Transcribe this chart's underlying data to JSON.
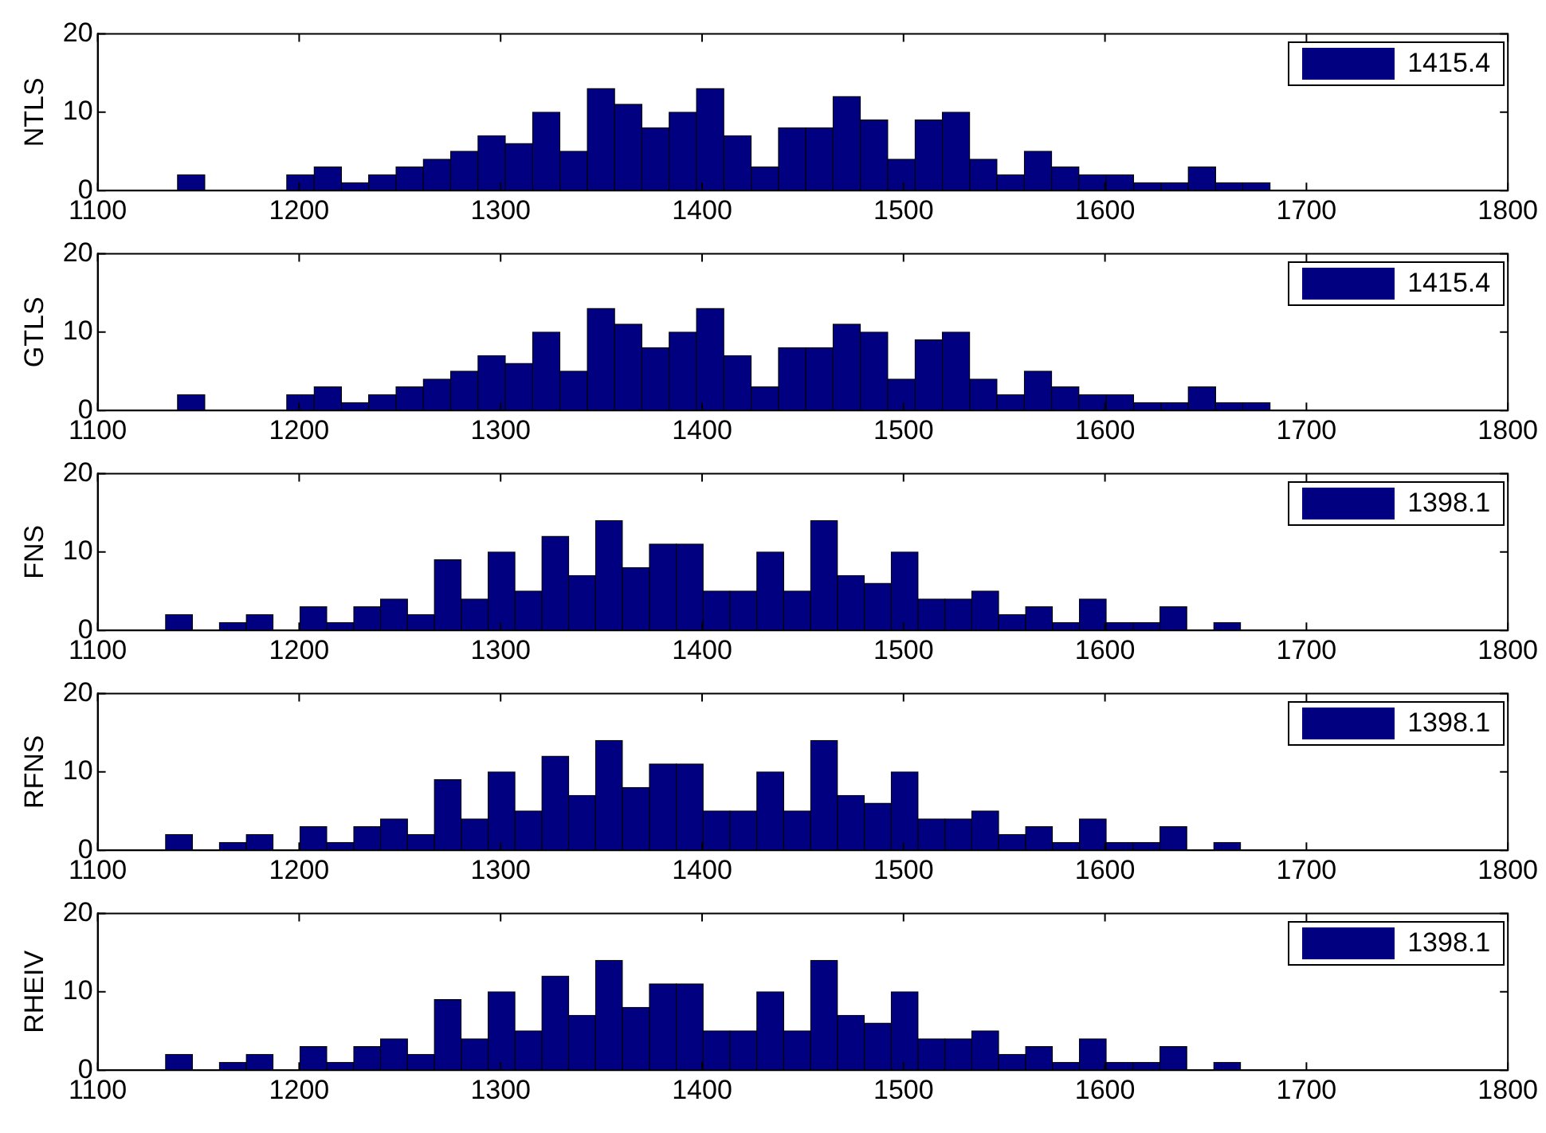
{
  "chart_data": [
    {
      "type": "histogram",
      "ylabel": "NTLS",
      "legend": "top right",
      "grid": false,
      "xlim": [
        1100,
        1800
      ],
      "xticks": [
        1100,
        1200,
        1300,
        1400,
        1500,
        1600,
        1700,
        1800
      ],
      "ylim": [
        0,
        20
      ],
      "yticks": [
        0,
        10,
        20
      ],
      "bins": [
        1139.6,
        1153.2,
        1166.7,
        1180.3,
        1193.8,
        1207.4,
        1221.0,
        1234.5,
        1248.1,
        1261.6,
        1275.2,
        1288.8,
        1302.3,
        1315.9,
        1329.4,
        1343.0,
        1356.6,
        1370.1,
        1383.7,
        1397.2,
        1410.8,
        1424.4,
        1437.9,
        1451.5,
        1465.0,
        1478.6,
        1492.2,
        1505.7,
        1519.3,
        1532.8,
        1546.4,
        1560.0,
        1573.5,
        1587.1,
        1600.6,
        1614.2,
        1627.8,
        1641.3,
        1654.9,
        1668.4,
        1682.0
      ],
      "series": [
        {
          "name": "1415.4",
          "color": "#000080",
          "values": [
            2,
            0,
            0,
            0,
            2,
            3,
            1,
            2,
            3,
            4,
            5,
            7,
            6,
            10,
            5,
            13,
            11,
            8,
            10,
            13,
            7,
            3,
            8,
            8,
            12,
            9,
            4,
            9,
            10,
            4,
            2,
            5,
            3,
            2,
            2,
            1,
            1,
            3,
            1,
            1
          ]
        }
      ]
    },
    {
      "type": "histogram",
      "ylabel": "GTLS",
      "legend": "top right",
      "grid": false,
      "xlim": [
        1100,
        1800
      ],
      "xticks": [
        1100,
        1200,
        1300,
        1400,
        1500,
        1600,
        1700,
        1800
      ],
      "ylim": [
        0,
        20
      ],
      "yticks": [
        0,
        10,
        20
      ],
      "bins": [
        1139.6,
        1153.2,
        1166.7,
        1180.3,
        1193.8,
        1207.4,
        1221.0,
        1234.5,
        1248.1,
        1261.6,
        1275.2,
        1288.8,
        1302.3,
        1315.9,
        1329.4,
        1343.0,
        1356.6,
        1370.1,
        1383.7,
        1397.2,
        1410.8,
        1424.4,
        1437.9,
        1451.5,
        1465.0,
        1478.6,
        1492.2,
        1505.7,
        1519.3,
        1532.8,
        1546.4,
        1560.0,
        1573.5,
        1587.1,
        1600.6,
        1614.2,
        1627.8,
        1641.3,
        1654.9,
        1668.4,
        1682.0
      ],
      "series": [
        {
          "name": "1415.4",
          "color": "#000080",
          "values": [
            2,
            0,
            0,
            0,
            2,
            3,
            1,
            2,
            3,
            4,
            5,
            7,
            6,
            10,
            5,
            13,
            11,
            8,
            10,
            13,
            7,
            3,
            8,
            8,
            11,
            10,
            4,
            9,
            10,
            4,
            2,
            5,
            3,
            2,
            2,
            1,
            1,
            3,
            1,
            1
          ]
        }
      ]
    },
    {
      "type": "histogram",
      "ylabel": "FNS",
      "legend": "top right",
      "grid": false,
      "xlim": [
        1100,
        1800
      ],
      "xticks": [
        1100,
        1200,
        1300,
        1400,
        1500,
        1600,
        1700,
        1800
      ],
      "ylim": [
        0,
        20
      ],
      "yticks": [
        0,
        10,
        20
      ],
      "bins": [
        1133.7,
        1147.0,
        1160.4,
        1173.7,
        1187.1,
        1200.4,
        1213.7,
        1227.1,
        1240.4,
        1253.8,
        1267.1,
        1280.4,
        1293.8,
        1307.1,
        1320.5,
        1333.8,
        1347.1,
        1360.5,
        1373.8,
        1387.2,
        1400.5,
        1413.8,
        1427.2,
        1440.5,
        1453.9,
        1467.2,
        1480.5,
        1493.9,
        1507.2,
        1520.6,
        1533.9,
        1547.2,
        1560.6,
        1573.9,
        1587.3,
        1600.6,
        1613.9,
        1627.3,
        1640.6,
        1654.0,
        1667.3
      ],
      "series": [
        {
          "name": "1398.1",
          "color": "#000080",
          "values": [
            2,
            0,
            1,
            2,
            0,
            3,
            1,
            3,
            4,
            2,
            9,
            4,
            10,
            5,
            12,
            7,
            14,
            8,
            11,
            11,
            5,
            5,
            10,
            5,
            14,
            7,
            6,
            10,
            4,
            4,
            5,
            2,
            3,
            1,
            4,
            1,
            1,
            3,
            0,
            1
          ]
        }
      ]
    },
    {
      "type": "histogram",
      "ylabel": "RFNS",
      "legend": "top right",
      "grid": false,
      "xlim": [
        1100,
        1800
      ],
      "xticks": [
        1100,
        1200,
        1300,
        1400,
        1500,
        1600,
        1700,
        1800
      ],
      "ylim": [
        0,
        20
      ],
      "yticks": [
        0,
        10,
        20
      ],
      "bins": [
        1133.7,
        1147.0,
        1160.4,
        1173.7,
        1187.1,
        1200.4,
        1213.7,
        1227.1,
        1240.4,
        1253.8,
        1267.1,
        1280.4,
        1293.8,
        1307.1,
        1320.5,
        1333.8,
        1347.1,
        1360.5,
        1373.8,
        1387.2,
        1400.5,
        1413.8,
        1427.2,
        1440.5,
        1453.9,
        1467.2,
        1480.5,
        1493.9,
        1507.2,
        1520.6,
        1533.9,
        1547.2,
        1560.6,
        1573.9,
        1587.3,
        1600.6,
        1613.9,
        1627.3,
        1640.6,
        1654.0,
        1667.3
      ],
      "series": [
        {
          "name": "1398.1",
          "color": "#000080",
          "values": [
            2,
            0,
            1,
            2,
            0,
            3,
            1,
            3,
            4,
            2,
            9,
            4,
            10,
            5,
            12,
            7,
            14,
            8,
            11,
            11,
            5,
            5,
            10,
            5,
            14,
            7,
            6,
            10,
            4,
            4,
            5,
            2,
            3,
            1,
            4,
            1,
            1,
            3,
            0,
            1
          ]
        }
      ]
    },
    {
      "type": "histogram",
      "ylabel": "RHEIV",
      "legend": "top right",
      "grid": false,
      "xlim": [
        1100,
        1800
      ],
      "xticks": [
        1100,
        1200,
        1300,
        1400,
        1500,
        1600,
        1700,
        1800
      ],
      "ylim": [
        0,
        20
      ],
      "yticks": [
        0,
        10,
        20
      ],
      "bins": [
        1133.7,
        1147.0,
        1160.4,
        1173.7,
        1187.1,
        1200.4,
        1213.7,
        1227.1,
        1240.4,
        1253.8,
        1267.1,
        1280.4,
        1293.8,
        1307.1,
        1320.5,
        1333.8,
        1347.1,
        1360.5,
        1373.8,
        1387.2,
        1400.5,
        1413.8,
        1427.2,
        1440.5,
        1453.9,
        1467.2,
        1480.5,
        1493.9,
        1507.2,
        1520.6,
        1533.9,
        1547.2,
        1560.6,
        1573.9,
        1587.3,
        1600.6,
        1613.9,
        1627.3,
        1640.6,
        1654.0,
        1667.3
      ],
      "series": [
        {
          "name": "1398.1",
          "color": "#000080",
          "values": [
            2,
            0,
            1,
            2,
            0,
            3,
            1,
            3,
            4,
            2,
            9,
            4,
            10,
            5,
            12,
            7,
            14,
            8,
            11,
            11,
            5,
            5,
            10,
            5,
            14,
            7,
            6,
            10,
            4,
            4,
            5,
            2,
            3,
            1,
            4,
            1,
            1,
            3,
            0,
            1
          ]
        }
      ]
    }
  ]
}
